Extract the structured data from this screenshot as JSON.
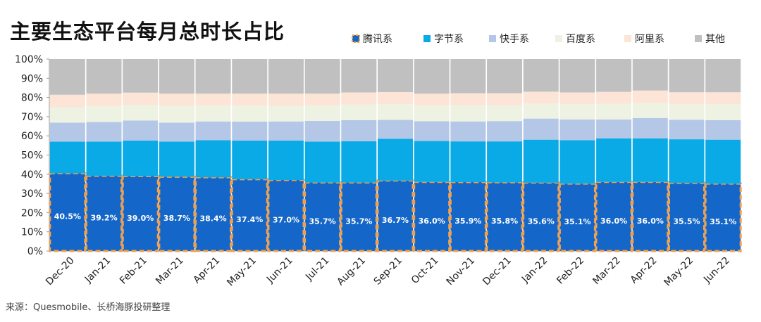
{
  "title": "主要生态平台每月总时长占比",
  "source": "来源：Quesmobile、长桥海豚投研整理",
  "chart_data": {
    "type": "bar",
    "stacked": true,
    "percent": true,
    "title": "主要生态平台每月总时长占比",
    "ylim": [
      0,
      100
    ],
    "y_ticks": [
      "0%",
      "10%",
      "20%",
      "30%",
      "40%",
      "50%",
      "60%",
      "70%",
      "80%",
      "90%",
      "100%"
    ],
    "grid": false,
    "legend_position": "top-right",
    "categories": [
      "Dec-20",
      "Jan-21",
      "Feb-21",
      "Mar-21",
      "Apr-21",
      "May-21",
      "Jun-21",
      "Jul-21",
      "Aug-21",
      "Sep-21",
      "Oct-21",
      "Nov-21",
      "Dec-21",
      "Jan-22",
      "Feb-22",
      "Mar-22",
      "Apr-22",
      "May-22",
      "Jun-22"
    ],
    "series": [
      {
        "name": "腾讯系",
        "color": "#1466c8",
        "data_labels": [
          "40.5%",
          "39.2%",
          "39.0%",
          "38.7%",
          "38.4%",
          "37.4%",
          "37.0%",
          "35.7%",
          "35.7%",
          "36.7%",
          "36.0%",
          "35.9%",
          "35.8%",
          "35.6%",
          "35.1%",
          "36.0%",
          "36.0%",
          "35.5%",
          "35.1%"
        ],
        "values": [
          40.5,
          39.2,
          39.0,
          38.7,
          38.4,
          37.4,
          37.0,
          35.7,
          35.7,
          36.7,
          36.0,
          35.9,
          35.8,
          35.6,
          35.1,
          36.0,
          36.0,
          35.5,
          35.1
        ]
      },
      {
        "name": "字节系",
        "color": "#0aaae6",
        "values": [
          16.5,
          17.8,
          18.5,
          18.3,
          19.3,
          20.1,
          20.5,
          21.3,
          21.5,
          21.8,
          21.3,
          21.2,
          21.3,
          22.4,
          22.6,
          22.7,
          22.7,
          22.7,
          22.9
        ]
      },
      {
        "name": "快手系",
        "color": "#b4c7e7",
        "values": [
          9.9,
          10.2,
          10.5,
          9.9,
          9.8,
          9.9,
          10.0,
          10.8,
          11.0,
          9.8,
          10.3,
          10.4,
          10.6,
          11.0,
          10.8,
          9.8,
          10.6,
          10.2,
          10.2
        ]
      },
      {
        "name": "百度系",
        "color": "#eef2e3",
        "values": [
          8.0,
          8.2,
          8.2,
          8.6,
          8.2,
          8.3,
          8.0,
          8.0,
          8.1,
          8.2,
          8.2,
          8.4,
          8.2,
          7.8,
          8.0,
          8.2,
          7.9,
          8.0,
          8.3
        ]
      },
      {
        "name": "阿里系",
        "color": "#fce4d6",
        "values": [
          6.5,
          6.6,
          6.3,
          6.5,
          6.3,
          6.3,
          6.5,
          6.2,
          6.3,
          6.3,
          6.2,
          6.3,
          6.3,
          6.2,
          6.1,
          6.2,
          6.4,
          6.3,
          6.2
        ]
      },
      {
        "name": "其他",
        "color": "#c0c0c0",
        "values": [
          18.6,
          18.0,
          17.5,
          18.0,
          18.0,
          18.0,
          18.0,
          18.0,
          17.4,
          17.2,
          18.0,
          17.8,
          17.8,
          17.0,
          17.4,
          17.1,
          16.4,
          17.3,
          17.3
        ]
      }
    ]
  }
}
